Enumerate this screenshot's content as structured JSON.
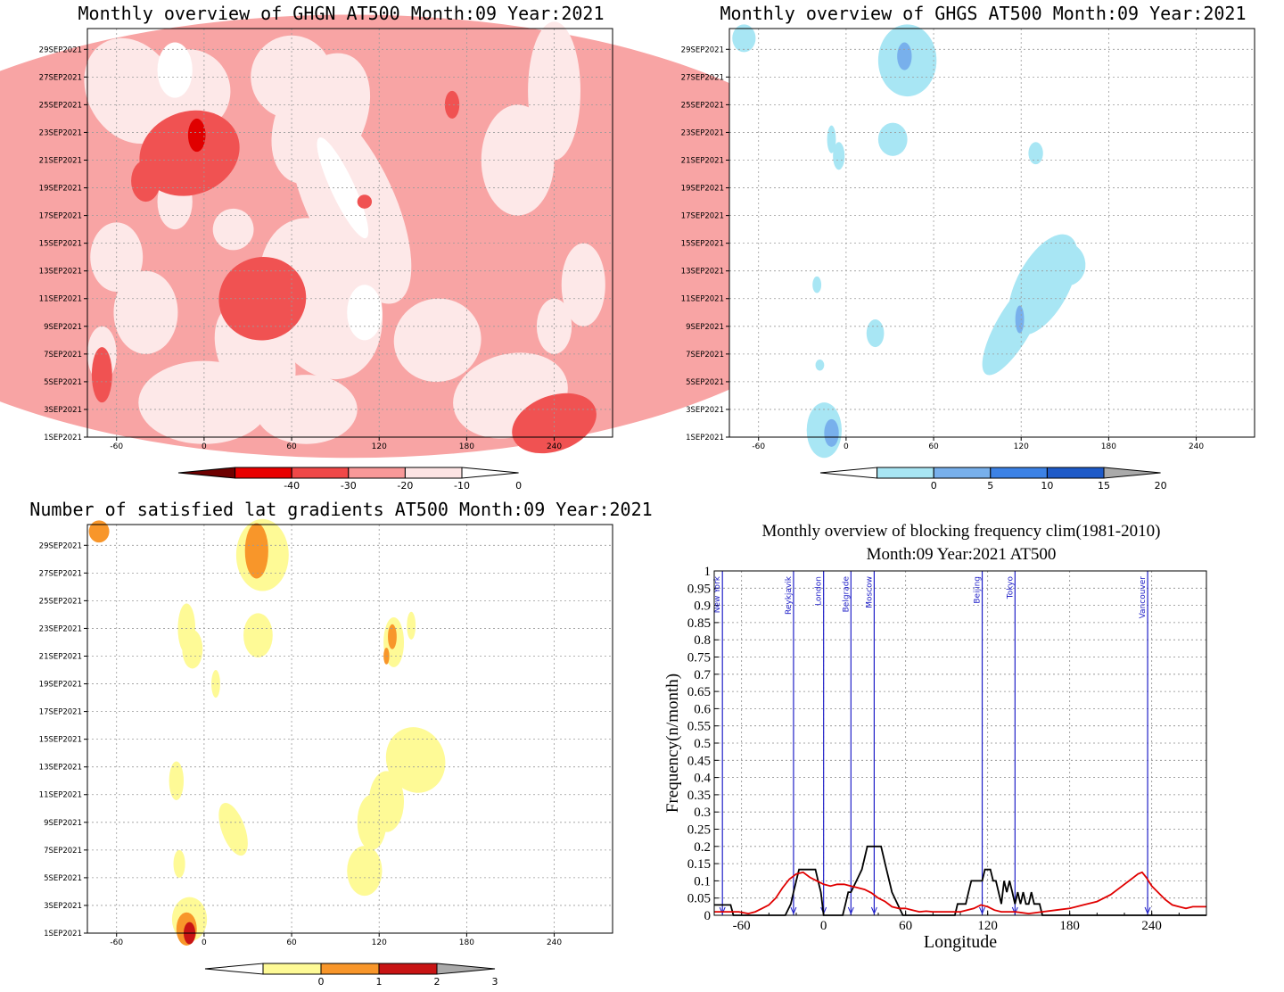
{
  "chart_data": [
    {
      "type": "heatmap",
      "title": "Monthly overview of GHGN AT500 Month:09 Year:2021",
      "x_ticks": [
        "-60",
        "0",
        "60",
        "120",
        "180",
        "240"
      ],
      "y_ticks": [
        "1SEP2021",
        "3SEP2021",
        "5SEP2021",
        "7SEP2021",
        "9SEP2021",
        "11SEP2021",
        "13SEP2021",
        "15SEP2021",
        "17SEP2021",
        "19SEP2021",
        "21SEP2021",
        "23SEP2021",
        "25SEP2021",
        "27SEP2021",
        "29SEP2021"
      ],
      "colorbar": {
        "labels": [
          "-40",
          "-30",
          "-20",
          "-10",
          "0"
        ],
        "colors": [
          "#6e0000",
          "#e80000",
          "#f04848",
          "#f89898",
          "#fde4e4",
          "#ffffff"
        ]
      },
      "grid": true
    },
    {
      "type": "heatmap",
      "title": "Monthly overview of GHGS AT500 Month:09 Year:2021",
      "x_ticks": [
        "-60",
        "0",
        "60",
        "120",
        "180",
        "240"
      ],
      "y_ticks": [
        "1SEP2021",
        "3SEP2021",
        "5SEP2021",
        "7SEP2021",
        "9SEP2021",
        "11SEP2021",
        "13SEP2021",
        "15SEP2021",
        "17SEP2021",
        "19SEP2021",
        "21SEP2021",
        "23SEP2021",
        "25SEP2021",
        "27SEP2021",
        "29SEP2021"
      ],
      "colorbar": {
        "labels": [
          "0",
          "5",
          "10",
          "15",
          "20"
        ],
        "colors": [
          "#ffffff",
          "#a8e6f4",
          "#78b0ec",
          "#3c82e6",
          "#1e5ac8",
          "#aaaaaa"
        ]
      },
      "grid": true
    },
    {
      "type": "heatmap",
      "title": "Number of satisfied lat gradients AT500 Month:09 Year:2021",
      "x_ticks": [
        "-60",
        "0",
        "60",
        "120",
        "180",
        "240"
      ],
      "y_ticks": [
        "1SEP2021",
        "3SEP2021",
        "5SEP2021",
        "7SEP2021",
        "9SEP2021",
        "11SEP2021",
        "13SEP2021",
        "15SEP2021",
        "17SEP2021",
        "19SEP2021",
        "21SEP2021",
        "23SEP2021",
        "25SEP2021",
        "27SEP2021",
        "29SEP2021"
      ],
      "colorbar": {
        "labels": [
          "0",
          "1",
          "2",
          "3"
        ],
        "colors": [
          "#ffffff",
          "#fefa96",
          "#f8962a",
          "#c81414",
          "#aaaaaa"
        ]
      },
      "grid": true
    },
    {
      "type": "line",
      "title": "Monthly overview of blocking frequency clim(1981-2010)",
      "subtitle": "Month:09 Year:2021  AT500",
      "xlabel": "Longitude",
      "ylabel": "Frequency(n/month)",
      "xlim": [
        -80,
        280
      ],
      "ylim": [
        0,
        1
      ],
      "x_ticks": [
        "-60",
        "0",
        "60",
        "120",
        "180",
        "240"
      ],
      "y_ticks": [
        "0",
        "0.05",
        "0.1",
        "0.15",
        "0.2",
        "0.25",
        "0.3",
        "0.35",
        "0.4",
        "0.45",
        "0.5",
        "0.55",
        "0.6",
        "0.65",
        "0.7",
        "0.75",
        "0.8",
        "0.85",
        "0.9",
        "0.95",
        "1"
      ],
      "cities": [
        {
          "name": "New York",
          "lon": -74
        },
        {
          "name": "Reykjavik",
          "lon": -22
        },
        {
          "name": "London",
          "lon": 0
        },
        {
          "name": "Belgrade",
          "lon": 20
        },
        {
          "name": "Moscow",
          "lon": 37
        },
        {
          "name": "Beijing",
          "lon": 116
        },
        {
          "name": "Tokyo",
          "lon": 140
        },
        {
          "name": "Vancouver",
          "lon": 237
        }
      ],
      "series": [
        {
          "color": "#000000",
          "points": [
            [
              -80,
              0.03
            ],
            [
              -68,
              0.03
            ],
            [
              -66,
              0
            ],
            [
              -28,
              0
            ],
            [
              -24,
              0.033
            ],
            [
              -22,
              0.067
            ],
            [
              -20,
              0.1
            ],
            [
              -18,
              0.133
            ],
            [
              -6,
              0.133
            ],
            [
              -4,
              0.1
            ],
            [
              -2,
              0.067
            ],
            [
              0,
              0
            ],
            [
              2,
              0
            ],
            [
              14,
              0
            ],
            [
              16,
              0.033
            ],
            [
              18,
              0.067
            ],
            [
              20,
              0.067
            ],
            [
              24,
              0.1
            ],
            [
              28,
              0.133
            ],
            [
              30,
              0.167
            ],
            [
              32,
              0.2
            ],
            [
              42,
              0.2
            ],
            [
              44,
              0.167
            ],
            [
              46,
              0.133
            ],
            [
              48,
              0.1
            ],
            [
              50,
              0.067
            ],
            [
              54,
              0.033
            ],
            [
              58,
              0
            ],
            [
              96,
              0
            ],
            [
              98,
              0.033
            ],
            [
              104,
              0.033
            ],
            [
              106,
              0.067
            ],
            [
              108,
              0.1
            ],
            [
              116,
              0.1
            ],
            [
              118,
              0.133
            ],
            [
              122,
              0.133
            ],
            [
              124,
              0.1
            ],
            [
              126,
              0.1
            ],
            [
              128,
              0.067
            ],
            [
              130,
              0.033
            ],
            [
              132,
              0.1
            ],
            [
              134,
              0.067
            ],
            [
              136,
              0.1
            ],
            [
              138,
              0.067
            ],
            [
              140,
              0.033
            ],
            [
              142,
              0.067
            ],
            [
              144,
              0.033
            ],
            [
              146,
              0.067
            ],
            [
              148,
              0.033
            ],
            [
              150,
              0.033
            ],
            [
              152,
              0.067
            ],
            [
              154,
              0.033
            ],
            [
              158,
              0.033
            ],
            [
              160,
              0
            ],
            [
              280,
              0
            ]
          ]
        },
        {
          "color": "#e00000",
          "points": [
            [
              -80,
              0.01
            ],
            [
              -70,
              0.01
            ],
            [
              -62,
              0.01
            ],
            [
              -55,
              0.005
            ],
            [
              -50,
              0.01
            ],
            [
              -45,
              0.02
            ],
            [
              -40,
              0.03
            ],
            [
              -35,
              0.05
            ],
            [
              -30,
              0.08
            ],
            [
              -25,
              0.105
            ],
            [
              -20,
              0.12
            ],
            [
              -15,
              0.125
            ],
            [
              -10,
              0.11
            ],
            [
              -5,
              0.1
            ],
            [
              0,
              0.09
            ],
            [
              5,
              0.085
            ],
            [
              10,
              0.09
            ],
            [
              15,
              0.09
            ],
            [
              20,
              0.085
            ],
            [
              25,
              0.08
            ],
            [
              30,
              0.075
            ],
            [
              35,
              0.065
            ],
            [
              40,
              0.05
            ],
            [
              45,
              0.04
            ],
            [
              50,
              0.025
            ],
            [
              55,
              0.02
            ],
            [
              60,
              0.02
            ],
            [
              65,
              0.015
            ],
            [
              70,
              0.01
            ],
            [
              75,
              0.012
            ],
            [
              80,
              0.01
            ],
            [
              90,
              0.01
            ],
            [
              100,
              0.01
            ],
            [
              110,
              0.02
            ],
            [
              115,
              0.03
            ],
            [
              120,
              0.025
            ],
            [
              125,
              0.015
            ],
            [
              130,
              0.01
            ],
            [
              140,
              0.01
            ],
            [
              150,
              0.005
            ],
            [
              160,
              0.01
            ],
            [
              170,
              0.015
            ],
            [
              180,
              0.02
            ],
            [
              190,
              0.03
            ],
            [
              200,
              0.04
            ],
            [
              210,
              0.06
            ],
            [
              220,
              0.09
            ],
            [
              225,
              0.105
            ],
            [
              230,
              0.12
            ],
            [
              233,
              0.125
            ],
            [
              236,
              0.11
            ],
            [
              240,
              0.085
            ],
            [
              245,
              0.065
            ],
            [
              250,
              0.045
            ],
            [
              255,
              0.03
            ],
            [
              260,
              0.025
            ],
            [
              265,
              0.02
            ],
            [
              270,
              0.025
            ],
            [
              280,
              0.025
            ]
          ]
        }
      ],
      "grid": true
    }
  ]
}
